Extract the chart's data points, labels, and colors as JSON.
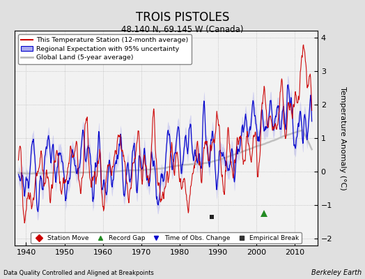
{
  "title": "TROIS PISTOLES",
  "subtitle": "48.140 N, 69.145 W (Canada)",
  "ylabel": "Temperature Anomaly (°C)",
  "xlabel_note": "Data Quality Controlled and Aligned at Breakpoints",
  "credit": "Berkeley Earth",
  "xlim": [
    1937,
    2016
  ],
  "ylim": [
    -2.2,
    4.2
  ],
  "yticks": [
    -2,
    -1,
    0,
    1,
    2,
    3,
    4
  ],
  "xticks": [
    1940,
    1950,
    1960,
    1970,
    1980,
    1990,
    2000,
    2010
  ],
  "bg_color": "#e0e0e0",
  "plot_bg_color": "#f2f2f2",
  "seed": 42,
  "station_color": "#cc0000",
  "regional_color": "#0000cc",
  "regional_fill_color": "#aaaaee",
  "global_color": "#bbbbbb",
  "legend_items": [
    "This Temperature Station (12-month average)",
    "Regional Expectation with 95% uncertainty",
    "Global Land (5-year average)"
  ],
  "marker_items": [
    {
      "label": "Station Move",
      "color": "#cc0000",
      "marker": "D"
    },
    {
      "label": "Record Gap",
      "color": "#228B22",
      "marker": "^"
    },
    {
      "label": "Time of Obs. Change",
      "color": "#0000cc",
      "marker": "v"
    },
    {
      "label": "Empirical Break",
      "color": "#333333",
      "marker": "s"
    }
  ],
  "empirical_breaks": [
    1988.5
  ],
  "record_gaps": [
    2002.0
  ],
  "time_of_obs": []
}
